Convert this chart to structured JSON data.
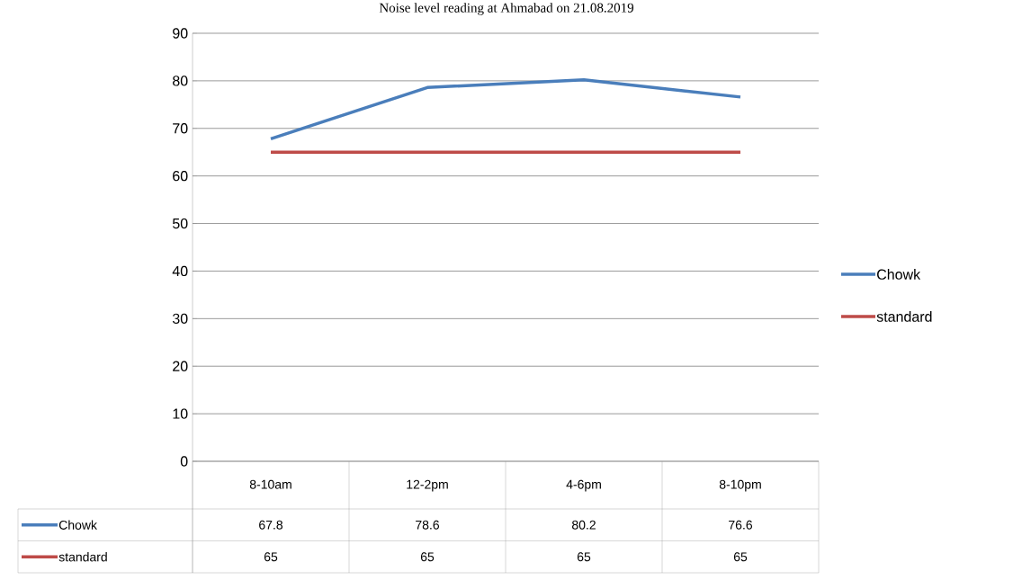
{
  "chart_data": {
    "type": "line",
    "title": "Noise level reading at Ahmabad on 21.08.2019",
    "categories": [
      "8-10am",
      "12-2pm",
      "4-6pm",
      "8-10pm"
    ],
    "series": [
      {
        "name": "Chowk",
        "color": "#4a7ebb",
        "values": [
          67.8,
          78.6,
          80.2,
          76.6
        ]
      },
      {
        "name": "standard",
        "color": "#be4b48",
        "values": [
          65,
          65,
          65,
          65
        ]
      }
    ],
    "ylim": [
      0,
      90
    ],
    "yticks": [
      0,
      10,
      20,
      30,
      40,
      50,
      60,
      70,
      80,
      90
    ],
    "grid": "y",
    "legend": "right",
    "data_labels": true
  }
}
